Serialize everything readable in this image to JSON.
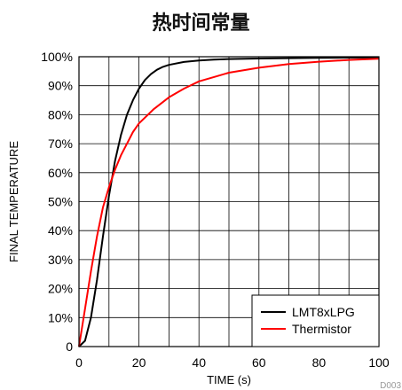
{
  "chart_data": {
    "type": "line",
    "title": "热时间常量",
    "xlabel": "TIME (s)",
    "ylabel": "FINAL TEMPERATURE",
    "xlim": [
      0,
      100
    ],
    "ylim": [
      0,
      100
    ],
    "x_ticks": [
      "0",
      "20",
      "40",
      "60",
      "80",
      "100"
    ],
    "y_ticks": [
      "0",
      "10%",
      "20%",
      "30%",
      "40%",
      "50%",
      "60%",
      "70%",
      "80%",
      "90%",
      "100%"
    ],
    "grid": true,
    "legend_position": "bottom-right",
    "series": [
      {
        "name": "LMT8xLPG",
        "color": "#000000",
        "x": [
          0,
          2,
          4,
          6,
          8,
          10,
          12,
          14,
          16,
          18,
          20,
          22,
          24,
          26,
          28,
          30,
          35,
          40,
          45,
          50,
          60,
          70,
          80,
          90,
          100
        ],
        "y": [
          0,
          2,
          10,
          23,
          38,
          52,
          64,
          73,
          80,
          85,
          89,
          92,
          94,
          95.5,
          96.5,
          97.2,
          98.2,
          98.7,
          99,
          99.2,
          99.4,
          99.5,
          99.6,
          99.7,
          99.8
        ]
      },
      {
        "name": "Thermistor",
        "color": "#ff0000",
        "x": [
          0,
          2,
          4,
          6,
          8,
          10,
          12,
          14,
          16,
          18,
          20,
          25,
          30,
          35,
          40,
          45,
          50,
          60,
          70,
          80,
          90,
          100
        ],
        "y": [
          0,
          13,
          26,
          38,
          48,
          55,
          61,
          66,
          70,
          74,
          77,
          82,
          86,
          89,
          91.5,
          93,
          94.5,
          96.2,
          97.5,
          98.3,
          98.9,
          99.3
        ]
      }
    ]
  },
  "watermark": "D003"
}
